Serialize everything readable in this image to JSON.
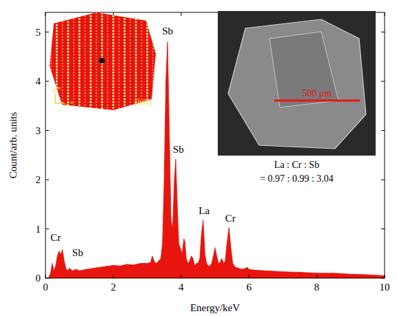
{
  "chart_data": {
    "type": "area",
    "x_label": "Energy/keV",
    "y_label": "Count/arb. units",
    "xlim": [
      0,
      10
    ],
    "ylim": [
      0,
      5.4
    ],
    "xticks": [
      0,
      2,
      4,
      6,
      8,
      10
    ],
    "yticks": [
      0,
      1,
      2,
      3,
      4,
      5
    ],
    "grid": false,
    "series": [
      {
        "color": "#e8150e",
        "x": [
          0.1,
          0.15,
          0.2,
          0.25,
          0.3,
          0.35,
          0.4,
          0.45,
          0.5,
          0.55,
          0.6,
          0.65,
          0.7,
          0.8,
          0.9,
          1.0,
          1.2,
          1.4,
          1.6,
          1.8,
          2.0,
          2.2,
          2.4,
          2.6,
          2.8,
          3.0,
          3.1,
          3.15,
          3.2,
          3.25,
          3.3,
          3.4,
          3.45,
          3.5,
          3.55,
          3.6,
          3.65,
          3.7,
          3.75,
          3.8,
          3.84,
          3.88,
          3.93,
          3.98,
          4.03,
          4.08,
          4.11,
          4.15,
          4.2,
          4.25,
          4.3,
          4.35,
          4.4,
          4.45,
          4.5,
          4.55,
          4.6,
          4.65,
          4.7,
          4.75,
          4.8,
          4.85,
          4.9,
          4.95,
          5.0,
          5.05,
          5.1,
          5.15,
          5.2,
          5.25,
          5.3,
          5.35,
          5.41,
          5.47,
          5.52,
          5.6,
          5.7,
          5.8,
          5.9,
          5.95,
          6.0,
          6.2,
          6.5,
          7.0,
          7.5,
          8.0,
          8.5,
          9.0,
          9.5,
          10.0
        ],
        "values": [
          0.02,
          0.1,
          0.3,
          0.15,
          0.25,
          0.45,
          0.55,
          0.48,
          0.58,
          0.35,
          0.2,
          0.15,
          0.2,
          0.15,
          0.18,
          0.15,
          0.18,
          0.2,
          0.22,
          0.24,
          0.26,
          0.25,
          0.28,
          0.27,
          0.3,
          0.3,
          0.32,
          0.45,
          0.35,
          0.3,
          0.32,
          0.4,
          0.7,
          2.0,
          4.0,
          4.8,
          3.0,
          1.2,
          1.0,
          2.0,
          2.42,
          1.6,
          0.7,
          0.6,
          0.5,
          0.8,
          0.75,
          0.4,
          0.3,
          0.35,
          0.45,
          0.4,
          0.25,
          0.3,
          0.3,
          0.4,
          0.9,
          1.18,
          0.5,
          0.3,
          0.25,
          0.25,
          0.3,
          0.45,
          0.62,
          0.45,
          0.3,
          0.32,
          0.4,
          0.3,
          0.35,
          0.7,
          1.03,
          0.6,
          0.3,
          0.22,
          0.2,
          0.18,
          0.2,
          0.22,
          0.18,
          0.16,
          0.15,
          0.13,
          0.12,
          0.1,
          0.1,
          0.08,
          0.07,
          0.05
        ]
      }
    ],
    "annotations": [
      {
        "text": "Cr",
        "x": 0.3,
        "y": 0.75
      },
      {
        "text": "Sb",
        "x": 0.95,
        "y": 0.45
      },
      {
        "text": "Sb",
        "x": 3.6,
        "y": 4.95
      },
      {
        "text": "Sb",
        "x": 3.92,
        "y": 2.55
      },
      {
        "text": "La",
        "x": 4.68,
        "y": 1.3
      },
      {
        "text": "Cr",
        "x": 5.45,
        "y": 1.15
      }
    ],
    "insets": {
      "diffraction": {
        "plane": "(h0l)",
        "axes": [
          "a*",
          "c*"
        ]
      },
      "sem": {
        "scale_bar": "500 μm",
        "ratio_label": "La : Cr : Sb",
        "ratio": "= 0.97 : 0.99 : 3.04"
      }
    }
  }
}
